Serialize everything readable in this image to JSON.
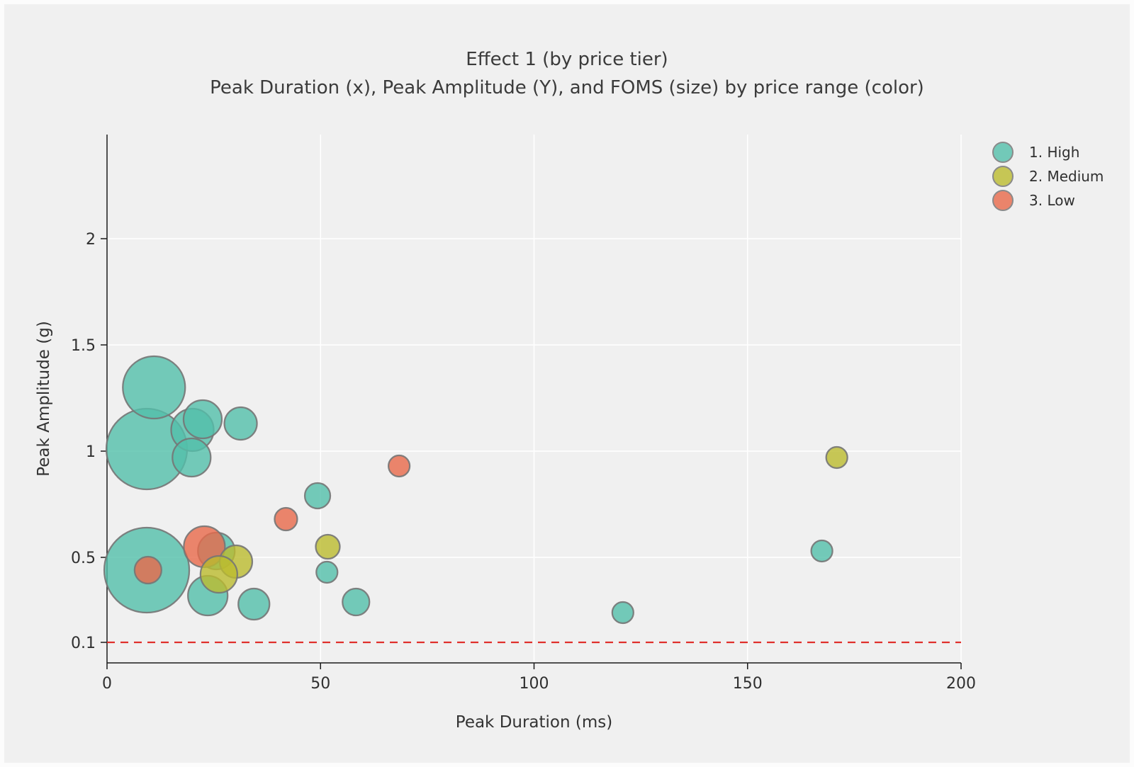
{
  "page": {
    "background": "#f0f0f0",
    "frame_color": "#fcfcfc"
  },
  "title": "Effect 1 (by price tier)",
  "subtitle": "Peak Duration (x), Peak Amplitude (Y), and FOMS (size) by price range (color)",
  "chart_data": {
    "type": "scatter",
    "title": "Effect 1 (by price tier)",
    "subtitle": "Peak Duration (x), Peak Amplitude (Y), and FOMS (size) by price range (color)",
    "xlabel": "Peak Duration (ms)",
    "ylabel": "Peak Amplitude (g)",
    "xlim": [
      0,
      200
    ],
    "ylim": [
      0,
      2.49
    ],
    "x_ticks": [
      0,
      50,
      100,
      150,
      200
    ],
    "y_ticks": [
      0.1,
      0.5,
      1,
      1.5,
      2
    ],
    "grid": true,
    "grid_color": "#ffffff",
    "axis_color": "#1a1a1a",
    "tick_label_color": "#2f2f2f",
    "marker_stroke": "#767676",
    "marker_opacity": 0.8,
    "size_encoding": "FOMS",
    "reference_line": {
      "y": 0.1,
      "color": "#e0302c",
      "style": "dashed"
    },
    "legend": {
      "position": "top-right"
    },
    "series": [
      {
        "name": "1. High",
        "color": "#52bfaa",
        "z": 0,
        "points": [
          {
            "x": 9.3,
            "y": 1.01,
            "r": 57
          },
          {
            "x": 9.3,
            "y": 0.44,
            "r": 60
          },
          {
            "x": 11.0,
            "y": 1.3,
            "r": 44
          },
          {
            "x": 20.0,
            "y": 1.1,
            "r": 30
          },
          {
            "x": 19.8,
            "y": 0.97,
            "r": 27
          },
          {
            "x": 22.4,
            "y": 1.15,
            "r": 27
          },
          {
            "x": 31.3,
            "y": 1.13,
            "r": 23
          },
          {
            "x": 25.6,
            "y": 0.53,
            "r": 26
          },
          {
            "x": 23.6,
            "y": 0.32,
            "r": 28
          },
          {
            "x": 34.4,
            "y": 0.28,
            "r": 22
          },
          {
            "x": 49.3,
            "y": 0.79,
            "r": 18
          },
          {
            "x": 51.5,
            "y": 0.43,
            "r": 15
          },
          {
            "x": 58.3,
            "y": 0.29,
            "r": 19
          },
          {
            "x": 120.8,
            "y": 0.24,
            "r": 15
          },
          {
            "x": 167.4,
            "y": 0.53,
            "r": 15
          }
        ]
      },
      {
        "name": "2. Medium",
        "color": "#bcbb2e",
        "z": 2,
        "points": [
          {
            "x": 30.2,
            "y": 0.48,
            "r": 23
          },
          {
            "x": 26.2,
            "y": 0.42,
            "r": 26
          },
          {
            "x": 51.7,
            "y": 0.55,
            "r": 17
          },
          {
            "x": 170.9,
            "y": 0.97,
            "r": 15
          }
        ]
      },
      {
        "name": "3. Low",
        "color": "#e8694a",
        "z": 1,
        "points": [
          {
            "x": 9.6,
            "y": 0.44,
            "r": 19
          },
          {
            "x": 22.8,
            "y": 0.55,
            "r": 29
          },
          {
            "x": 41.9,
            "y": 0.68,
            "r": 16
          },
          {
            "x": 68.4,
            "y": 0.93,
            "r": 15
          }
        ]
      }
    ]
  }
}
